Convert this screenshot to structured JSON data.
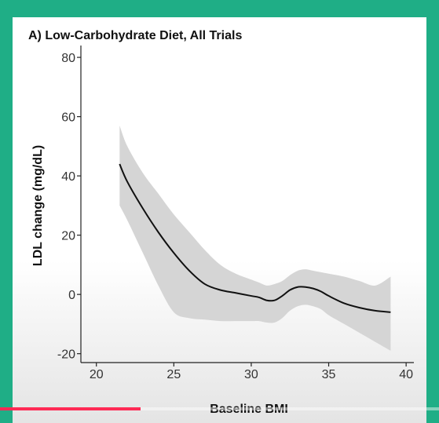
{
  "chart_data": {
    "type": "line",
    "title": "A) Low-Carbohydrate Diet, All Trials",
    "xlabel": "Baseline BMI",
    "ylabel": "LDL change (mg/dL)",
    "xlim": [
      19,
      40.5
    ],
    "ylim": [
      -23,
      84
    ],
    "x_ticks": [
      20,
      25,
      30,
      35,
      40
    ],
    "y_ticks": [
      -20,
      0,
      20,
      40,
      60,
      80
    ],
    "grid": false,
    "legend": "none",
    "series": [
      {
        "color": "#111111",
        "x": [
          21.5,
          22,
          23,
          24,
          25,
          26,
          27,
          28,
          29,
          30,
          30.5,
          31,
          31.5,
          32,
          32.5,
          33,
          33.5,
          34,
          34.5,
          35,
          36,
          37,
          38,
          39
        ],
        "y": [
          44,
          38,
          29,
          21,
          14,
          8,
          3.5,
          1.5,
          0.5,
          -0.5,
          -1,
          -2,
          -2,
          -0.5,
          1.5,
          2.5,
          2.5,
          2,
          1,
          -0.5,
          -3,
          -4.5,
          -5.5,
          -6
        ],
        "ci_lower": [
          30,
          25,
          14,
          3,
          -6,
          -8,
          -8.5,
          -9,
          -9,
          -9,
          -9,
          -9.5,
          -9.5,
          -8,
          -5.5,
          -4,
          -3.5,
          -4,
          -5,
          -7,
          -10,
          -13,
          -16,
          -19
        ],
        "ci_upper": [
          57,
          50,
          41,
          34,
          27,
          21,
          15,
          10,
          7,
          5,
          4,
          3,
          3.5,
          4.5,
          6.5,
          8,
          8.5,
          8,
          7.5,
          7,
          6,
          4.5,
          3,
          6
        ]
      }
    ]
  },
  "player": {
    "progress": 0.32,
    "progress_color": "#ff2a55"
  },
  "colors": {
    "page_background": "#1fae86",
    "ci_band": "#d5d5d5",
    "line": "#111111"
  }
}
